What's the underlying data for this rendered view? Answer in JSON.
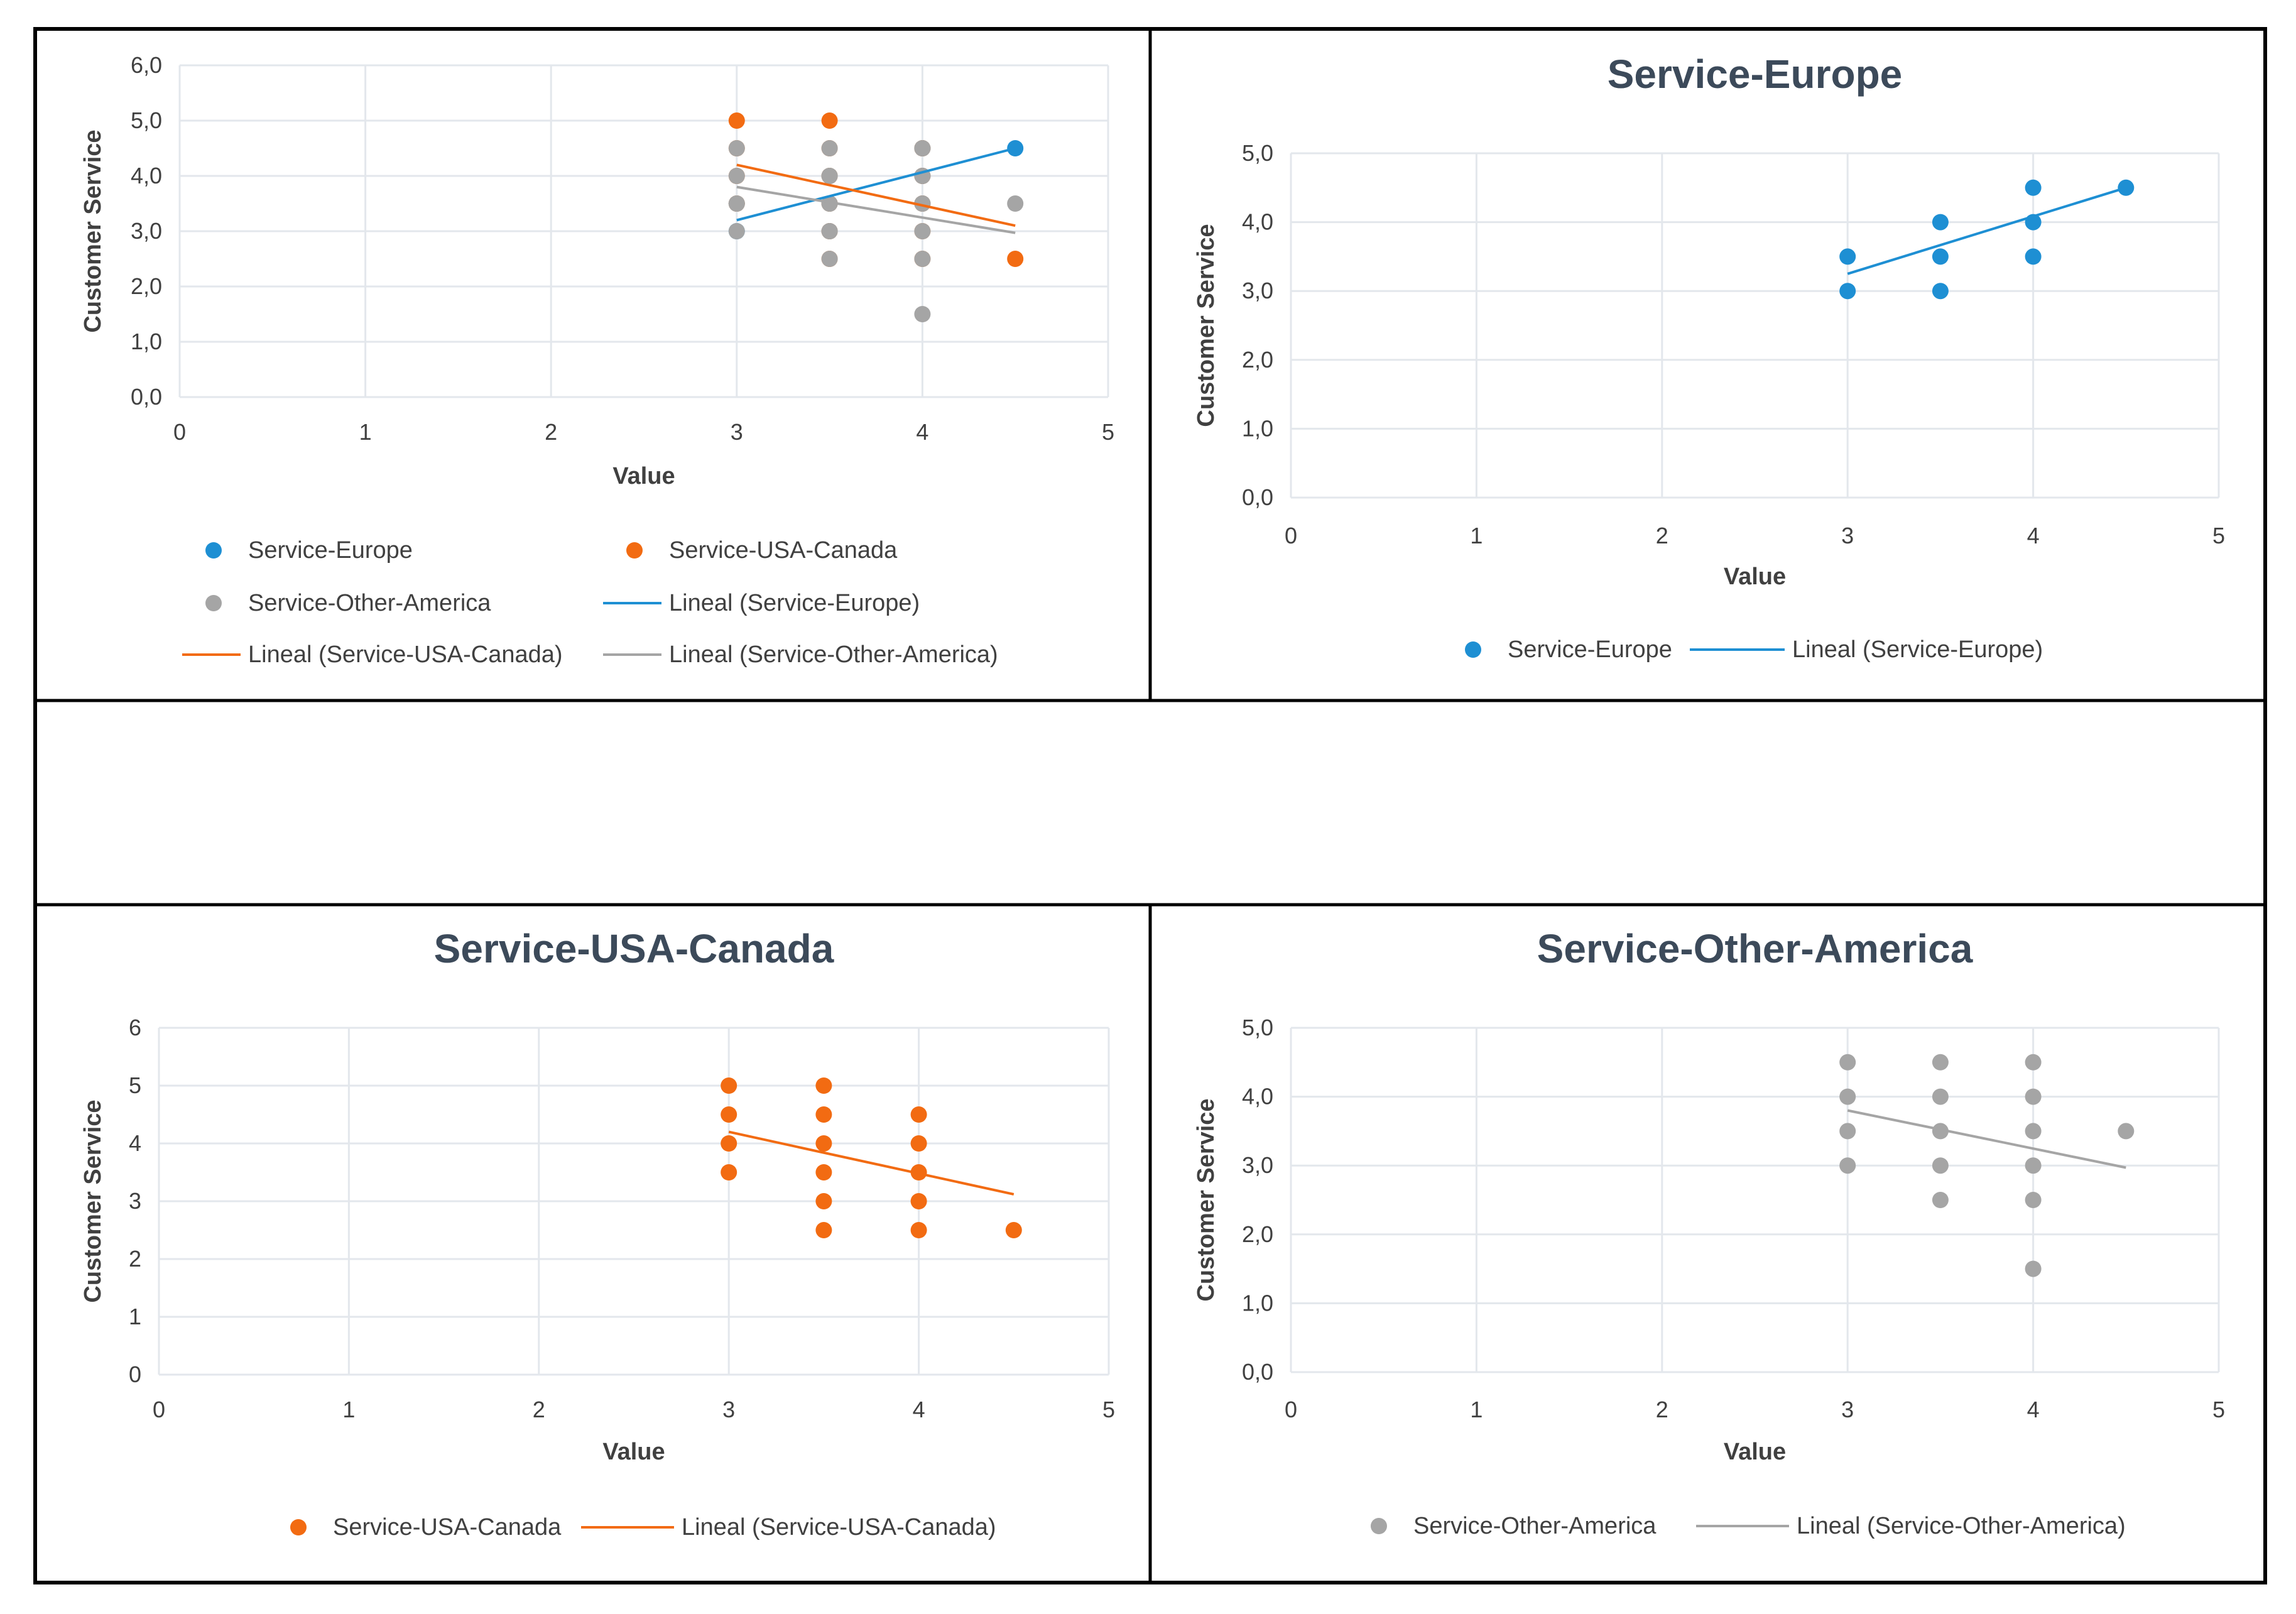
{
  "colors": {
    "europe": "#1E8FD3",
    "usa_canada": "#F26B12",
    "other_america": "#A5A5A5",
    "axis_text": "#404040",
    "title": "#3C4A5A",
    "grid": "#E3E7EC",
    "frame": "#000000"
  },
  "chart_data": [
    {
      "id": "combined",
      "type": "scatter",
      "title": "",
      "xlabel": "Value",
      "ylabel": "Customer Service",
      "xlim": [
        0,
        5
      ],
      "ylim": [
        0,
        6
      ],
      "x_ticks": [
        "0",
        "1",
        "2",
        "3",
        "4",
        "5"
      ],
      "y_ticks": [
        "0,0",
        "1,0",
        "2,0",
        "3,0",
        "4,0",
        "5,0",
        "6,0"
      ],
      "series": [
        {
          "name": "Service-Europe",
          "color_key": "europe",
          "points": [
            [
              3,
              3
            ],
            [
              3,
              3.5
            ],
            [
              3.5,
              3
            ],
            [
              3.5,
              3.5
            ],
            [
              3.5,
              4
            ],
            [
              4,
              3.5
            ],
            [
              4,
              4
            ],
            [
              4,
              4.5
            ],
            [
              4.5,
              4.5
            ]
          ],
          "trend": {
            "name": "Lineal (Service-Europe)",
            "from": [
              3,
              3.2
            ],
            "to": [
              4.5,
              4.5
            ]
          }
        },
        {
          "name": "Service-USA-Canada",
          "color_key": "usa_canada",
          "points": [
            [
              3,
              3.5
            ],
            [
              3,
              4
            ],
            [
              3,
              4.5
            ],
            [
              3,
              5
            ],
            [
              3.5,
              2.5
            ],
            [
              3.5,
              3
            ],
            [
              3.5,
              3.5
            ],
            [
              3.5,
              4
            ],
            [
              3.5,
              4.5
            ],
            [
              3.5,
              5
            ],
            [
              4,
              2.5
            ],
            [
              4,
              3
            ],
            [
              4,
              3.5
            ],
            [
              4,
              4
            ],
            [
              4,
              4.5
            ],
            [
              4.5,
              2.5
            ]
          ],
          "trend": {
            "name": "Lineal (Service-USA-Canada)",
            "from": [
              3,
              4.2
            ],
            "to": [
              4.5,
              3.1
            ]
          }
        },
        {
          "name": "Service-Other-America",
          "color_key": "other_america",
          "points": [
            [
              3,
              3
            ],
            [
              3,
              3.5
            ],
            [
              3,
              4
            ],
            [
              3,
              4.5
            ],
            [
              3.5,
              2.5
            ],
            [
              3.5,
              3
            ],
            [
              3.5,
              3.5
            ],
            [
              3.5,
              4
            ],
            [
              3.5,
              4.5
            ],
            [
              4,
              1.5
            ],
            [
              4,
              2.5
            ],
            [
              4,
              3
            ],
            [
              4,
              3.5
            ],
            [
              4,
              4
            ],
            [
              4,
              4.5
            ],
            [
              4.5,
              3.5
            ]
          ],
          "trend": {
            "name": "Lineal (Service-Other-America)",
            "from": [
              3,
              3.8
            ],
            "to": [
              4.5,
              2.97
            ]
          }
        }
      ],
      "legend": [
        "Service-Europe",
        "Service-USA-Canada",
        "Service-Other-America",
        "Lineal (Service-Europe)",
        "Lineal (Service-USA-Canada)",
        "Lineal (Service-Other-America)"
      ]
    },
    {
      "id": "europe",
      "type": "scatter",
      "title": "Service-Europe",
      "xlabel": "Value",
      "ylabel": "Customer Service",
      "xlim": [
        0,
        5
      ],
      "ylim": [
        0,
        5
      ],
      "x_ticks": [
        "0",
        "1",
        "2",
        "3",
        "4",
        "5"
      ],
      "y_ticks": [
        "0,0",
        "1,0",
        "2,0",
        "3,0",
        "4,0",
        "5,0"
      ],
      "series": [
        {
          "name": "Service-Europe",
          "color_key": "europe",
          "points": [
            [
              3,
              3
            ],
            [
              3,
              3.5
            ],
            [
              3.5,
              3
            ],
            [
              3.5,
              3.5
            ],
            [
              3.5,
              4
            ],
            [
              4,
              3.5
            ],
            [
              4,
              4
            ],
            [
              4,
              4.5
            ],
            [
              4.5,
              4.5
            ]
          ],
          "trend": {
            "name": "Lineal (Service-Europe)",
            "from": [
              3,
              3.25
            ],
            "to": [
              4.5,
              4.5
            ]
          }
        }
      ],
      "legend": [
        "Service-Europe",
        "Lineal (Service-Europe)"
      ]
    },
    {
      "id": "usa_canada",
      "type": "scatter",
      "title": "Service-USA-Canada",
      "xlabel": "Value",
      "ylabel": "Customer Service",
      "xlim": [
        0,
        5
      ],
      "ylim": [
        0,
        6
      ],
      "x_ticks": [
        "0",
        "1",
        "2",
        "3",
        "4",
        "5"
      ],
      "y_ticks": [
        "0",
        "1",
        "2",
        "3",
        "4",
        "5",
        "6"
      ],
      "series": [
        {
          "name": "Service-USA-Canada",
          "color_key": "usa_canada",
          "points": [
            [
              3,
              3.5
            ],
            [
              3,
              4
            ],
            [
              3,
              4.5
            ],
            [
              3,
              5
            ],
            [
              3.5,
              2.5
            ],
            [
              3.5,
              3
            ],
            [
              3.5,
              3.5
            ],
            [
              3.5,
              4
            ],
            [
              3.5,
              4.5
            ],
            [
              3.5,
              5
            ],
            [
              4,
              2.5
            ],
            [
              4,
              3
            ],
            [
              4,
              3.5
            ],
            [
              4,
              4
            ],
            [
              4,
              4.5
            ],
            [
              4.5,
              2.5
            ]
          ],
          "trend": {
            "name": "Lineal (Service-USA-Canada)",
            "from": [
              3,
              4.2
            ],
            "to": [
              4.5,
              3.12
            ]
          }
        }
      ],
      "legend": [
        "Service-USA-Canada",
        "Lineal (Service-USA-Canada)"
      ]
    },
    {
      "id": "other_america",
      "type": "scatter",
      "title": "Service-Other-America",
      "xlabel": "Value",
      "ylabel": "Customer Service",
      "xlim": [
        0,
        5
      ],
      "ylim": [
        0,
        5
      ],
      "x_ticks": [
        "0",
        "1",
        "2",
        "3",
        "4",
        "5"
      ],
      "y_ticks": [
        "0,0",
        "1,0",
        "2,0",
        "3,0",
        "4,0",
        "5,0"
      ],
      "series": [
        {
          "name": "Service-Other-America",
          "color_key": "other_america",
          "points": [
            [
              3,
              3
            ],
            [
              3,
              3.5
            ],
            [
              3,
              4
            ],
            [
              3,
              4.5
            ],
            [
              3.5,
              2.5
            ],
            [
              3.5,
              3
            ],
            [
              3.5,
              3.5
            ],
            [
              3.5,
              4
            ],
            [
              3.5,
              4.5
            ],
            [
              4,
              1.5
            ],
            [
              4,
              2.5
            ],
            [
              4,
              3
            ],
            [
              4,
              3.5
            ],
            [
              4,
              4
            ],
            [
              4,
              4.5
            ],
            [
              4.5,
              3.5
            ]
          ],
          "trend": {
            "name": "Lineal (Service-Other-America)",
            "from": [
              3,
              3.8
            ],
            "to": [
              4.5,
              2.97
            ]
          }
        }
      ],
      "legend": [
        "Service-Other-America",
        "Lineal (Service-Other-America)"
      ]
    }
  ]
}
